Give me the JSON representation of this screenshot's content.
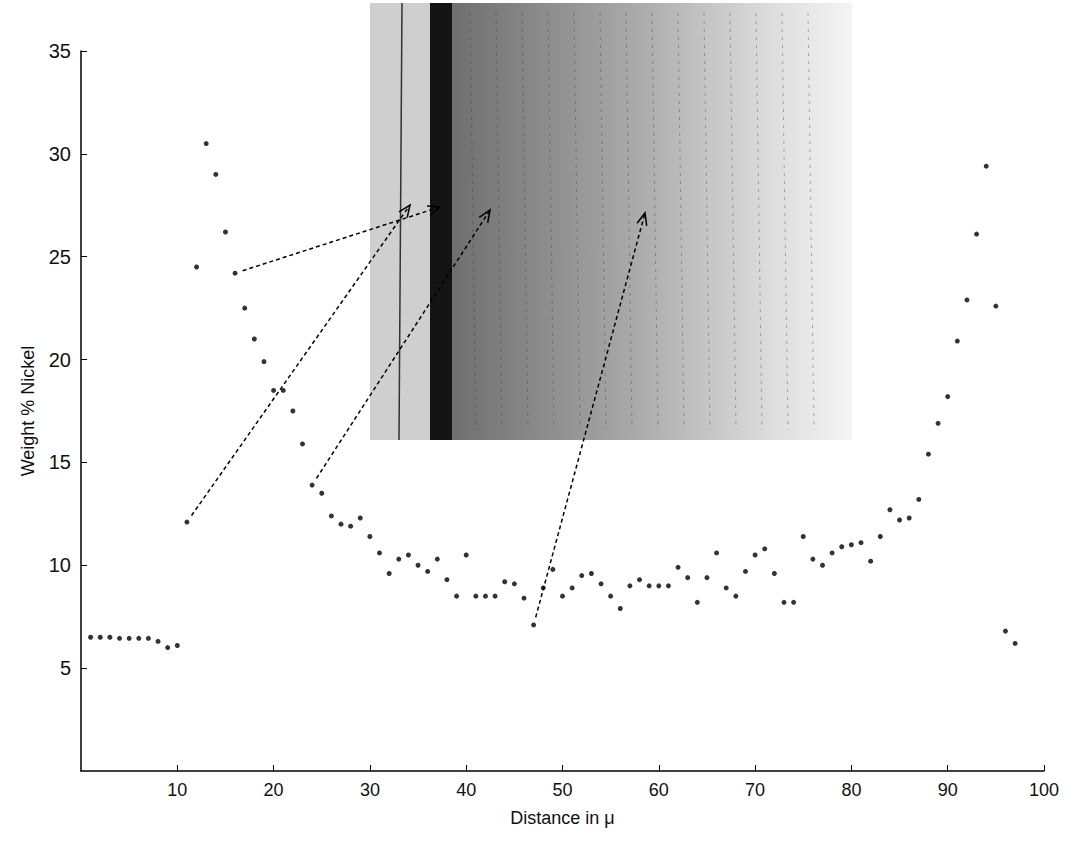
{
  "chart_data": {
    "type": "scatter",
    "x_label": "Distance in μ",
    "y_label": "Weight % Nickel",
    "x": [
      1,
      2,
      3,
      4,
      5,
      6,
      7,
      8,
      9,
      10,
      11,
      12,
      13,
      14,
      15,
      16,
      17,
      18,
      19,
      20,
      21,
      22,
      23,
      24,
      25,
      26,
      27,
      28,
      29,
      30,
      31,
      32,
      33,
      34,
      35,
      36,
      37,
      38,
      39,
      40,
      41,
      42,
      43,
      44,
      45,
      46,
      47,
      48,
      49,
      50,
      51,
      52,
      53,
      54,
      55,
      56,
      57,
      58,
      59,
      60,
      61,
      62,
      63,
      64,
      65,
      66,
      67,
      68,
      69,
      70,
      71,
      72,
      73,
      74,
      75,
      76,
      77,
      78,
      79,
      80,
      81,
      82,
      83,
      84,
      85,
      86,
      87,
      88,
      89,
      90,
      91,
      92,
      93,
      94,
      95,
      96,
      97
    ],
    "values": [
      6.5,
      6.5,
      6.5,
      6.45,
      6.45,
      6.45,
      6.45,
      6.3,
      6.0,
      6.1,
      12.1,
      24.5,
      30.5,
      29.0,
      26.2,
      24.2,
      22.5,
      21.0,
      19.9,
      18.5,
      18.5,
      17.5,
      15.9,
      13.9,
      13.5,
      12.4,
      12.0,
      11.9,
      12.3,
      11.4,
      10.6,
      9.6,
      10.3,
      10.5,
      10.0,
      9.7,
      10.3,
      9.3,
      8.5,
      10.5,
      8.5,
      8.5,
      8.5,
      9.2,
      9.1,
      8.4,
      7.1,
      8.9,
      9.8,
      8.5,
      8.9,
      9.5,
      9.6,
      9.1,
      8.5,
      7.9,
      9.0,
      9.3,
      9.0,
      9.0,
      9.0,
      9.9,
      9.4,
      8.2,
      9.4,
      10.6,
      8.9,
      8.5,
      9.7,
      10.5,
      10.8,
      9.6,
      8.2,
      8.2,
      11.4,
      10.3,
      10.0,
      10.6,
      10.9,
      11.0,
      11.1,
      10.2,
      11.4,
      12.7,
      12.2,
      12.3,
      13.2,
      15.4,
      16.9,
      18.2,
      20.9,
      22.9,
      26.1,
      29.4,
      22.6,
      6.8,
      6.2
    ],
    "color": "#000000",
    "marker": "circle",
    "xlim": [
      0,
      100
    ],
    "xticks": [
      10,
      20,
      30,
      40,
      50,
      60,
      70,
      80,
      90,
      100
    ],
    "ylim": [
      0,
      35
    ],
    "yticks": [
      5,
      10,
      15,
      20,
      25,
      30,
      35
    ],
    "grid": false
  }
}
